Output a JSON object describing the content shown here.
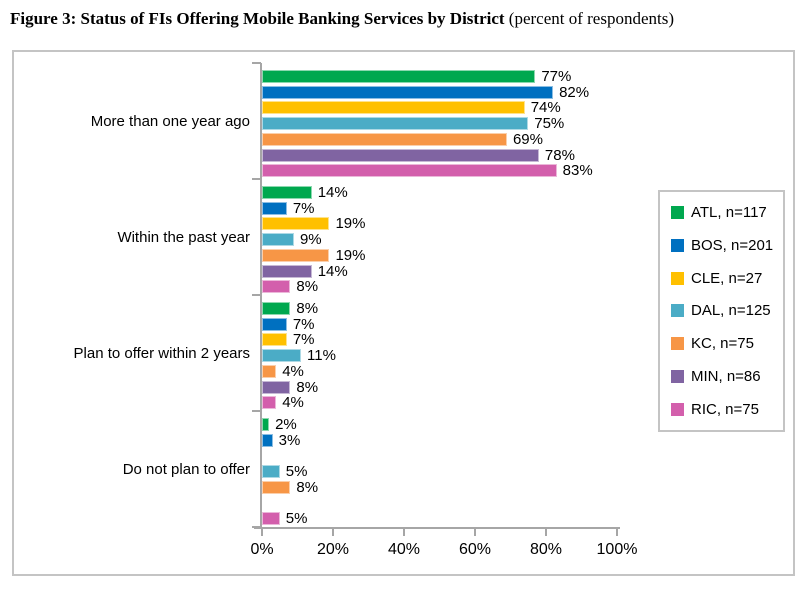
{
  "figure": {
    "title_bold": "Figure 3: Status of FIs Offering Mobile Banking Services by District",
    "title_normal": " (percent of respondents)"
  },
  "chart_data": {
    "type": "bar",
    "orientation": "horizontal",
    "title": "Figure 3: Status of FIs Offering Mobile Banking Services by District (percent of respondents)",
    "categories": [
      "More than one year ago",
      "Within the past year",
      "Plan to offer within 2 years",
      "Do not plan to offer"
    ],
    "series": [
      {
        "name": "ATL, n=117",
        "color": "#00A84F",
        "values": [
          77,
          14,
          8,
          2
        ]
      },
      {
        "name": "BOS, n=201",
        "color": "#0070C0",
        "values": [
          82,
          7,
          7,
          3
        ]
      },
      {
        "name": "CLE, n=27",
        "color": "#FFC000",
        "values": [
          74,
          19,
          7,
          null
        ]
      },
      {
        "name": "DAL, n=125",
        "color": "#4BACC6",
        "values": [
          75,
          9,
          11,
          5
        ]
      },
      {
        "name": "KC, n=75",
        "color": "#F79646",
        "values": [
          69,
          19,
          4,
          8
        ]
      },
      {
        "name": "MIN, n=86",
        "color": "#8064A2",
        "values": [
          78,
          14,
          8,
          null
        ]
      },
      {
        "name": "RIC, n=75",
        "color": "#D35FAC",
        "values": [
          83,
          8,
          4,
          5
        ]
      }
    ],
    "x_tick_labels": [
      "0%",
      "20%",
      "40%",
      "60%",
      "80%",
      "100%"
    ],
    "x_tick_values": [
      0,
      20,
      40,
      60,
      80,
      100
    ],
    "xlim": [
      0,
      100
    ],
    "value_suffix": "%",
    "grid": false,
    "legend_position": "right",
    "axis_color": "#a6a6a6",
    "frame_color": "#c4c4c4"
  }
}
